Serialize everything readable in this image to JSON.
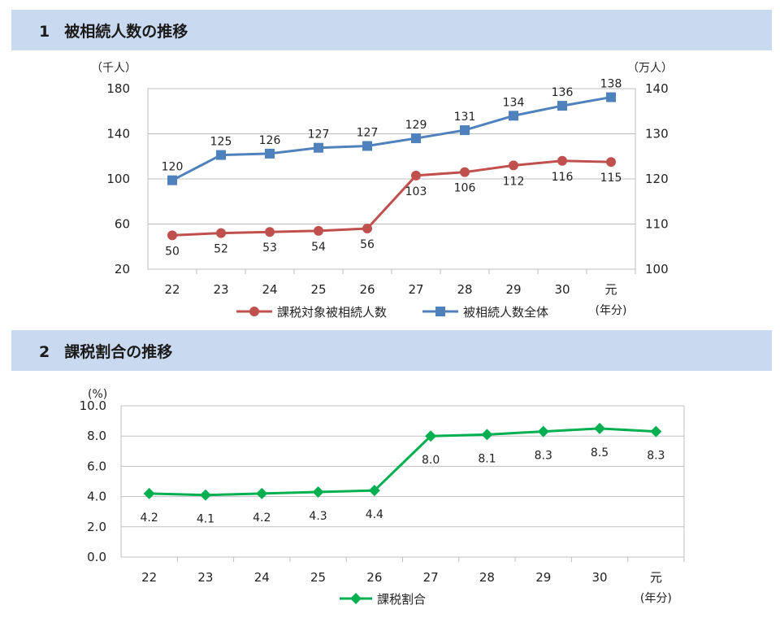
{
  "sections": [
    {
      "number": "1",
      "title": "被相続人数の推移"
    },
    {
      "number": "2",
      "title": "課税割合の推移"
    }
  ],
  "chart_data": [
    {
      "type": "line",
      "categories": [
        "22",
        "23",
        "24",
        "25",
        "26",
        "27",
        "28",
        "29",
        "30",
        "元"
      ],
      "x_unit": "(年分)",
      "y_left_unit": "（千人）",
      "y_right_unit": "（万人）",
      "y_left_range": [
        20,
        180
      ],
      "y_left_ticks": [
        "180",
        "140",
        "100",
        "60",
        "20"
      ],
      "y_right_range": [
        100,
        140
      ],
      "y_right_ticks": [
        "140",
        "130",
        "120",
        "110",
        "100"
      ],
      "grid": "horizontal",
      "legend_position": "bottom",
      "series": [
        {
          "name": "課税対象被相続人数",
          "axis": "left",
          "color": "#c0504d",
          "marker": "circle",
          "values": [
            50,
            52,
            53,
            54,
            56,
            103,
            106,
            112,
            116,
            115
          ],
          "labels": [
            "50",
            "52",
            "53",
            "54",
            "56",
            "103",
            "106",
            "112",
            "116",
            "115"
          ]
        },
        {
          "name": "被相続人数全体",
          "axis": "right",
          "color": "#4f81bd",
          "marker": "square",
          "values": [
            119.7,
            125.3,
            125.6,
            126.9,
            127.3,
            129.0,
            130.8,
            134.0,
            136.2,
            138.1
          ],
          "labels": [
            "120",
            "125",
            "126",
            "127",
            "127",
            "129",
            "131",
            "134",
            "136",
            "138"
          ]
        }
      ]
    },
    {
      "type": "line",
      "categories": [
        "22",
        "23",
        "24",
        "25",
        "26",
        "27",
        "28",
        "29",
        "30",
        "元"
      ],
      "x_unit": "(年分)",
      "y_unit": "(%)",
      "y_range": [
        0,
        10
      ],
      "y_ticks": [
        "10.0",
        "8.0",
        "6.0",
        "4.0",
        "2.0",
        "0.0"
      ],
      "grid": "horizontal",
      "legend_position": "bottom",
      "series": [
        {
          "name": "課税割合",
          "color": "#00b050",
          "marker": "diamond",
          "values": [
            4.2,
            4.1,
            4.2,
            4.3,
            4.4,
            8.0,
            8.1,
            8.3,
            8.5,
            8.3
          ],
          "labels": [
            "4.2",
            "4.1",
            "4.2",
            "4.3",
            "4.4",
            "8.0",
            "8.1",
            "8.3",
            "8.5",
            "8.3"
          ]
        }
      ]
    }
  ]
}
